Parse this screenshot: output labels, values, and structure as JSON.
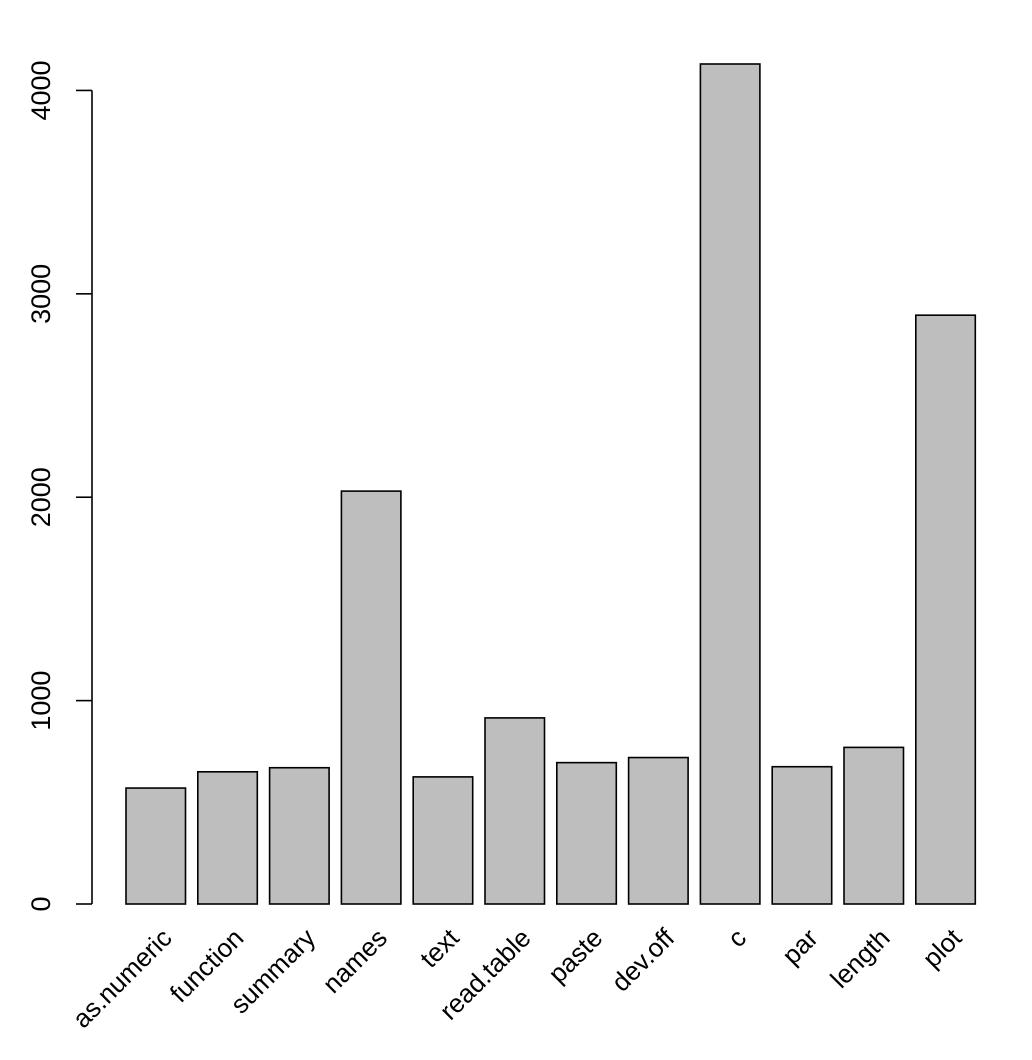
{
  "chart_data": {
    "type": "bar",
    "title": "",
    "xlabel": "",
    "ylabel": "",
    "categories": [
      "as.numeric",
      "function",
      "summary",
      "names",
      "text",
      "read.table",
      "paste",
      "dev.off",
      "c",
      "par",
      "length",
      "plot"
    ],
    "values": [
      570,
      650,
      670,
      2030,
      625,
      915,
      695,
      720,
      4130,
      675,
      770,
      2895
    ],
    "ylim": [
      0,
      4130
    ],
    "y_ticks": [
      0,
      1000,
      2000,
      3000,
      4000
    ],
    "y_tick_labels": [
      "0",
      "1000",
      "2000",
      "3000",
      "4000"
    ],
    "grid": false,
    "legend": "none",
    "bar_color": "#bebebe",
    "bar_edge_color": "#000000"
  }
}
